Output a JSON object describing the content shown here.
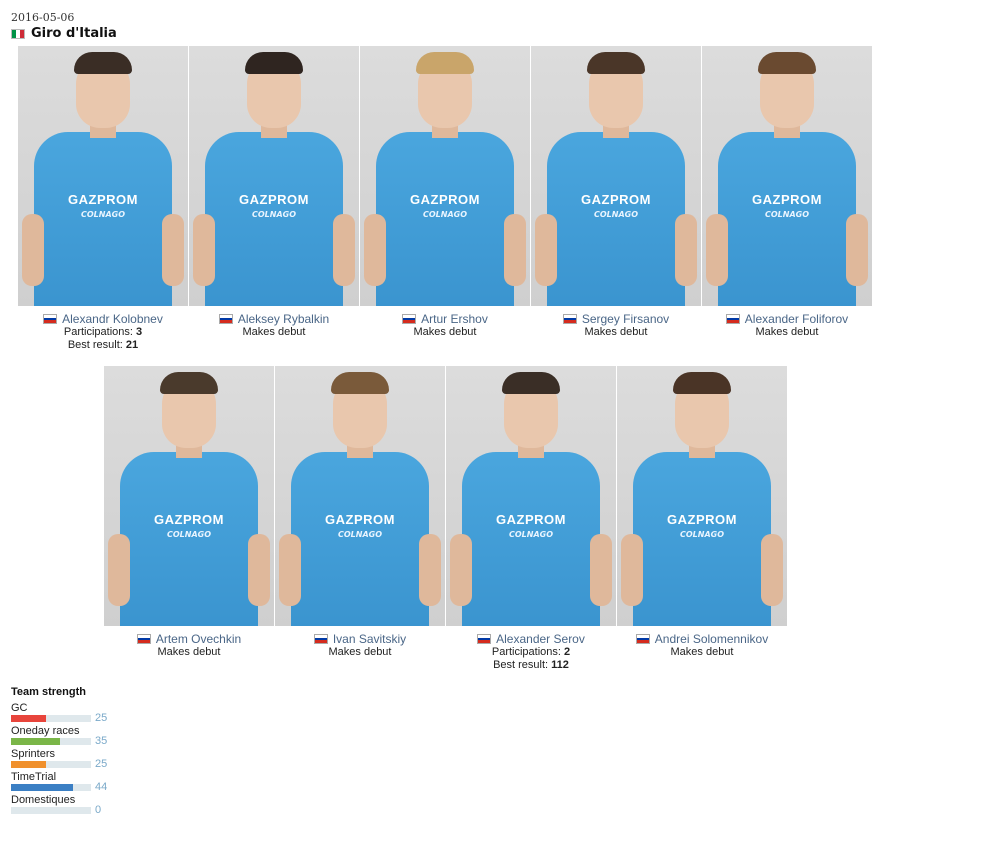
{
  "header": {
    "date": "2016-05-06",
    "race": "Giro d'Italia"
  },
  "riders": [
    {
      "name": "Alexandr Kolobnev",
      "debut": false,
      "participations_label": "Participations:",
      "participations": "3",
      "best_label": "Best result:",
      "best": "21"
    },
    {
      "name": "Aleksey Rybalkin",
      "debut": true,
      "debut_text": "Makes debut"
    },
    {
      "name": "Artur Ershov",
      "debut": true,
      "debut_text": "Makes debut"
    },
    {
      "name": "Sergey Firsanov",
      "debut": true,
      "debut_text": "Makes debut"
    },
    {
      "name": "Alexander Foliforov",
      "debut": true,
      "debut_text": "Makes debut"
    },
    {
      "name": "Artem Ovechkin",
      "debut": true,
      "debut_text": "Makes debut"
    },
    {
      "name": "Ivan Savitskiy",
      "debut": true,
      "debut_text": "Makes debut"
    },
    {
      "name": "Alexander Serov",
      "debut": false,
      "participations_label": "Participations:",
      "participations": "2",
      "best_label": "Best result:",
      "best": "112"
    },
    {
      "name": "Andrei Solomennikov",
      "debut": true,
      "debut_text": "Makes debut"
    }
  ],
  "jersey": {
    "logo": "GAZPROM",
    "sub": "COLNAGO"
  },
  "team_strength": {
    "title": "Team strength",
    "max": 100,
    "items": [
      {
        "label": "GC",
        "value": 25,
        "color": "#e8453c"
      },
      {
        "label": "Oneday races",
        "value": 35,
        "color": "#7ab648"
      },
      {
        "label": "Sprinters",
        "value": 25,
        "color": "#f0902c"
      },
      {
        "label": "TimeTrial",
        "value": 44,
        "color": "#3b7fc4"
      },
      {
        "label": "Domestiques",
        "value": 0,
        "color": "#3b7fc4"
      }
    ]
  },
  "colors": {
    "name_link": "#4a6687",
    "value_text": "#7aa9c9",
    "bar_track": "#dfe8ec"
  }
}
